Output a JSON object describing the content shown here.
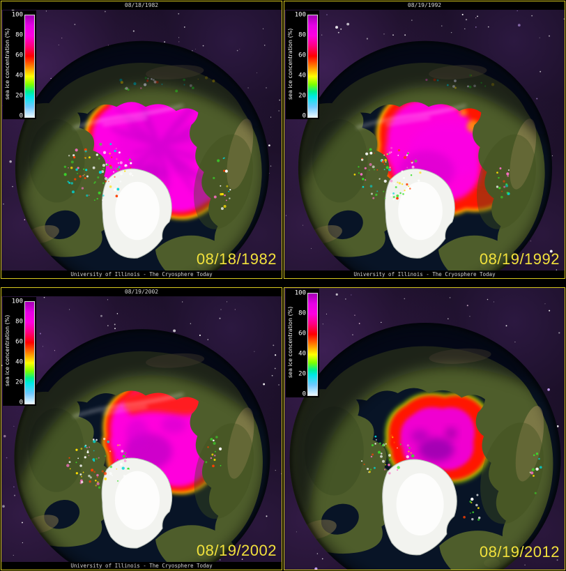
{
  "legend": {
    "label": "sea ice concentration (%)",
    "ticks": [
      "100",
      "80",
      "60",
      "40",
      "20",
      "0"
    ]
  },
  "panels": [
    {
      "title": "08/18/1982",
      "date_label": "08/18/1982",
      "caption": "University of Illinois - The Cryosphere Today"
    },
    {
      "title": "08/19/1992",
      "date_label": "08/19/1992",
      "caption": "University of Illinois - The Cryosphere Today"
    },
    {
      "title": "08/19/2002",
      "date_label": "08/19/2002",
      "caption": "University of Illinois - The Cryosphere Today"
    },
    {
      "title": null,
      "date_label": "08/19/2012",
      "caption": null
    }
  ],
  "colors": {
    "frame_yellow": "#d9ca1f",
    "date_yellow": "#f2e13c",
    "strip_text": "#d6d6d6",
    "scale_100_purple": "#a400b4",
    "scale_80_magenta": "#ff00e0",
    "scale_60_red": "#ff0000",
    "scale_50_orange": "#ff8000",
    "scale_40_yellow": "#ffff00",
    "scale_30_green": "#7dff00",
    "scale_20_cyan": "#00e8e8",
    "scale_10_blue": "#70c8ff",
    "scale_0_white": "#e8f8ff"
  },
  "chart_data": {
    "type": "heatmap",
    "title": "Arctic sea ice concentration, same week across four decades",
    "legend_label": "sea ice concentration (%)",
    "scale_ticks": [
      100,
      80,
      60,
      40,
      20,
      0
    ],
    "panel_dates": [
      "08/18/1982",
      "08/19/1992",
      "08/19/2002",
      "08/19/2012"
    ],
    "source_caption": "University of Illinois - The Cryosphere Today"
  }
}
